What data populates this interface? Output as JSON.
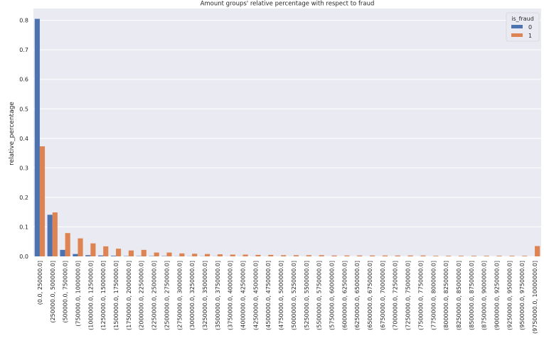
{
  "chart_data": {
    "type": "bar",
    "title": "Amount groups' relative percentage with respect to fraud",
    "xlabel": "",
    "ylabel": "relative_percentage",
    "ylim": [
      0,
      0.84
    ],
    "yticks": [
      "0.0",
      "0.1",
      "0.2",
      "0.3",
      "0.4",
      "0.5",
      "0.6",
      "0.7",
      "0.8"
    ],
    "grid": true,
    "legend": {
      "title": "is_fraud",
      "placement": "top-right"
    },
    "categories": [
      "(0.0, 250000.0]",
      "(250000.0, 500000.0]",
      "(500000.0, 750000.0]",
      "(750000.0, 1000000.0]",
      "(1000000.0, 1250000.0]",
      "(1250000.0, 1500000.0]",
      "(1500000.0, 1750000.0]",
      "(1750000.0, 2000000.0]",
      "(2000000.0, 2250000.0]",
      "(2250000.0, 2500000.0]",
      "(2500000.0, 2750000.0]",
      "(2750000.0, 3000000.0]",
      "(3000000.0, 3250000.0]",
      "(3250000.0, 3500000.0]",
      "(3500000.0, 3750000.0]",
      "(3750000.0, 4000000.0]",
      "(4000000.0, 4250000.0]",
      "(4250000.0, 4500000.0]",
      "(4500000.0, 4750000.0]",
      "(4750000.0, 5000000.0]",
      "(5000000.0, 5250000.0]",
      "(5250000.0, 5500000.0]",
      "(5500000.0, 5750000.0]",
      "(5750000.0, 6000000.0]",
      "(6000000.0, 6250000.0]",
      "(6250000.0, 6500000.0]",
      "(6500000.0, 6750000.0]",
      "(6750000.0, 7000000.0]",
      "(7000000.0, 7250000.0]",
      "(7250000.0, 7500000.0]",
      "(7500000.0, 7750000.0]",
      "(7750000.0, 8000000.0]",
      "(8000000.0, 8250000.0]",
      "(8250000.0, 8500000.0]",
      "(8500000.0, 8750000.0]",
      "(8750000.0, 9000000.0]",
      "(9000000.0, 9250000.0]",
      "(9250000.0, 9500000.0]",
      "(9500000.0, 9750000.0]",
      "(9750000.0, 10000000.0]"
    ],
    "series": [
      {
        "name": "0",
        "color": "#4c72b0",
        "values": [
          0.805,
          0.141,
          0.022,
          0.008,
          0.004,
          0.003,
          0.002,
          0.001,
          0.001,
          0.001,
          0.001,
          0.0005,
          0.0005,
          0.0005,
          0.0004,
          0.0003,
          0.0003,
          0.0003,
          0.0002,
          0.0002,
          0.0002,
          0.0002,
          0.0002,
          0.0001,
          0.0001,
          0.0001,
          0.0001,
          0.0001,
          0.0001,
          0.0001,
          0.0001,
          0.0001,
          0.0001,
          0.0001,
          0.0001,
          0.0001,
          0.0001,
          0.0001,
          0.0001,
          0.0001
        ]
      },
      {
        "name": "1",
        "color": "#dd8452",
        "values": [
          0.373,
          0.149,
          0.079,
          0.061,
          0.044,
          0.034,
          0.026,
          0.02,
          0.022,
          0.013,
          0.013,
          0.01,
          0.009,
          0.008,
          0.007,
          0.006,
          0.006,
          0.005,
          0.005,
          0.004,
          0.004,
          0.004,
          0.004,
          0.003,
          0.003,
          0.003,
          0.003,
          0.003,
          0.003,
          0.003,
          0.003,
          0.002,
          0.002,
          0.002,
          0.002,
          0.002,
          0.002,
          0.002,
          0.002,
          0.035
        ]
      }
    ]
  }
}
